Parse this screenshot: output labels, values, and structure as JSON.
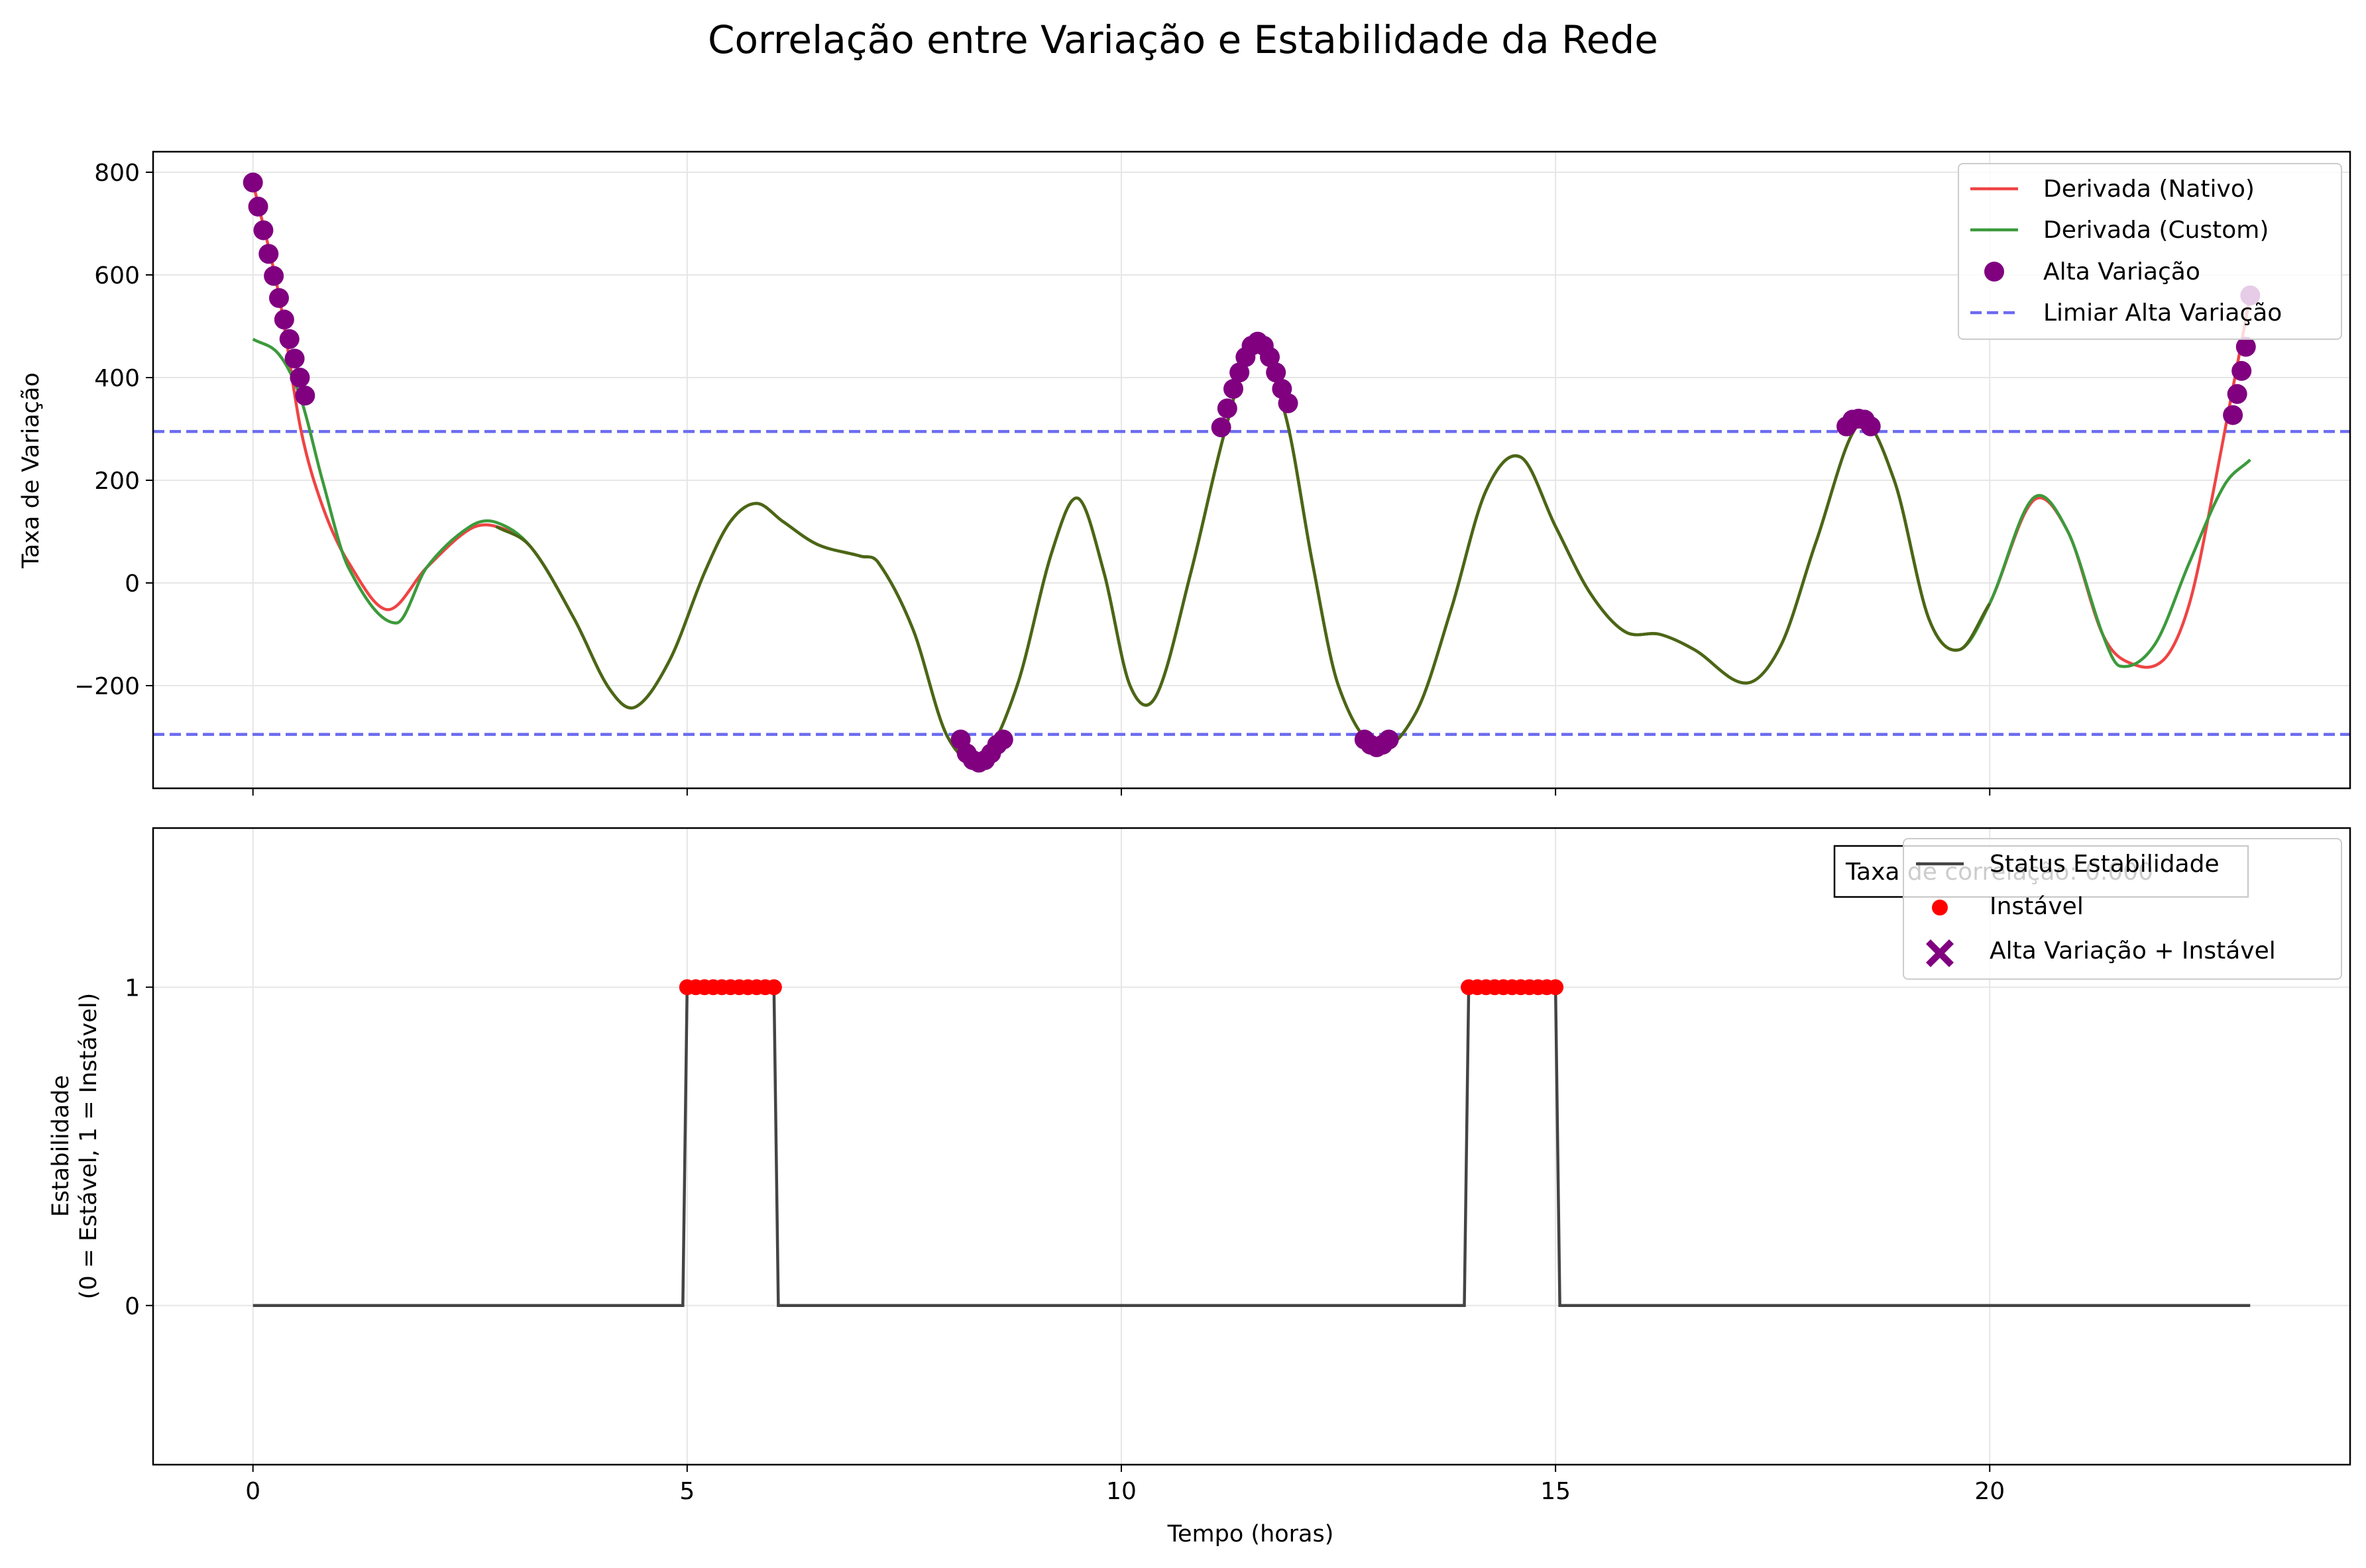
{
  "chart_data": {
    "title": "Correlação entre Variação e Estabilidade da Rede",
    "xlabel": "Tempo (horas)",
    "xlim": [
      -1.15,
      24.15
    ],
    "xticks": [
      0,
      5,
      10,
      15,
      20
    ],
    "subplots": [
      {
        "type": "line",
        "ylabel": "Taxa de Variação",
        "ylim": [
          -400,
          840
        ],
        "yticks": [
          -200,
          0,
          200,
          400,
          600,
          800
        ],
        "ytick_labels": [
          "−200",
          "0",
          "200",
          "400",
          "600",
          "800"
        ],
        "grid": true,
        "legend_position": "top-right",
        "threshold": 295,
        "colors": {
          "nativo": "#ef4444",
          "custom": "#3c9a3c",
          "overlap": "#4b6616",
          "highvar": "#800080",
          "threshold": "#6b6bf0"
        },
        "series": [
          {
            "name": "Derivada (Nativo)",
            "x": [
              0,
              0.3,
              0.55,
              0.8,
              1.1,
              1.55,
              2.0,
              2.5,
              2.8,
              3.2,
              3.7,
              4.1,
              4.4,
              4.8,
              5.2,
              5.5,
              5.8,
              6.1,
              6.5,
              7.0,
              7.2,
              7.6,
              8.0,
              8.4,
              8.8,
              9.2,
              9.5,
              9.8,
              10.1,
              10.4,
              10.8,
              11.2,
              11.55,
              11.9,
              12.2,
              12.5,
              12.95,
              13.4,
              13.8,
              14.2,
              14.6,
              15.0,
              15.4,
              15.8,
              16.2,
              16.6,
              17.2,
              17.6,
              18.0,
              18.5,
              18.9,
              19.3,
              19.65,
              20.0,
              20.5,
              20.9,
              21.3,
              21.6,
              22.0,
              22.3,
              22.6,
              23.0
            ],
            "values": [
              780,
              560,
              300,
              150,
              40,
              -52,
              30,
              105,
              110,
              70,
              -70,
              -205,
              -242,
              -150,
              20,
              120,
              155,
              120,
              75,
              52,
              40,
              -90,
              -300,
              -340,
              -200,
              60,
              165,
              20,
              -200,
              -220,
              20,
              300,
              470,
              320,
              40,
              -200,
              -320,
              -250,
              -50,
              180,
              245,
              110,
              -20,
              -95,
              -100,
              -130,
              -195,
              -120,
              80,
              310,
              200,
              -70,
              -130,
              -40,
              160,
              100,
              -100,
              -155,
              -150,
              -40,
              200,
              560
            ]
          },
          {
            "name": "Derivada (Custom)",
            "x": [
              0,
              0.3,
              0.55,
              0.8,
              1.1,
              1.65,
              2.0,
              2.5,
              2.8,
              3.2,
              3.7,
              4.1,
              4.4,
              4.8,
              5.2,
              5.5,
              5.8,
              6.1,
              6.5,
              7.0,
              7.2,
              7.6,
              8.0,
              8.4,
              8.8,
              9.2,
              9.5,
              9.8,
              10.1,
              10.4,
              10.8,
              11.2,
              11.55,
              11.9,
              12.2,
              12.5,
              12.95,
              13.4,
              13.8,
              14.2,
              14.6,
              15.0,
              15.4,
              15.8,
              16.2,
              16.6,
              17.2,
              17.6,
              18.0,
              18.5,
              18.9,
              19.3,
              19.65,
              20.0,
              20.5,
              20.9,
              21.3,
              21.5,
              21.9,
              22.3,
              22.7,
              23.0
            ],
            "values": [
              475,
              445,
              360,
              200,
              30,
              -78,
              30,
              110,
              118,
              70,
              -70,
              -205,
              -242,
              -150,
              20,
              120,
              155,
              120,
              75,
              52,
              40,
              -90,
              -300,
              -340,
              -200,
              60,
              165,
              20,
              -200,
              -220,
              20,
              300,
              470,
              320,
              40,
              -200,
              -320,
              -250,
              -50,
              180,
              245,
              110,
              -20,
              -95,
              -100,
              -130,
              -195,
              -120,
              80,
              310,
              200,
              -70,
              -130,
              -40,
              165,
              100,
              -100,
              -162,
              -120,
              40,
              190,
              240
            ]
          },
          {
            "name": "Alta Variação",
            "type": "scatter",
            "x": [
              0.0,
              0.06,
              0.12,
              0.18,
              0.24,
              0.3,
              0.36,
              0.42,
              0.48,
              0.54,
              0.6,
              8.15,
              8.22,
              8.29,
              8.36,
              8.43,
              8.5,
              8.57,
              8.64,
              11.15,
              11.22,
              11.29,
              11.36,
              11.43,
              11.5,
              11.57,
              11.64,
              11.71,
              11.78,
              11.85,
              11.92,
              12.8,
              12.87,
              12.94,
              13.01,
              13.08,
              18.35,
              18.42,
              18.49,
              18.56,
              18.63,
              22.8,
              22.85,
              22.9,
              22.95,
              23.0
            ],
            "values": [
              780,
              733,
              687,
              641,
              598,
              555,
              513,
              475,
              437,
              400,
              365,
              -305,
              -332,
              -345,
              -350,
              -345,
              -332,
              -315,
              -305,
              303,
              340,
              378,
              410,
              440,
              462,
              470,
              462,
              440,
              410,
              378,
              350,
              -305,
              -315,
              -320,
              -315,
              -305,
              305,
              318,
              320,
              318,
              305,
              327,
              368,
              413,
              460,
              560
            ]
          },
          {
            "name": "Limiar Alta Variação",
            "type": "hline",
            "values": [
              295,
              -295
            ]
          }
        ]
      },
      {
        "type": "line",
        "ylabel": "Estabilidade\n(0 = Estável, 1 = Instável)",
        "ylabel_lines": [
          "Estabilidade",
          "(0 = Estável, 1 = Instável)"
        ],
        "ylim": [
          -0.5,
          1.5
        ],
        "yticks": [
          0,
          1
        ],
        "ytick_labels": [
          "0",
          "1"
        ],
        "grid": true,
        "legend_position": "top-right",
        "correlation_label": "Taxa de correlação: 0.000",
        "colors": {
          "status": "#444444",
          "instavel": "#ff0000",
          "both": "#800080"
        },
        "series": [
          {
            "name": "Status Estabilidade",
            "x": [
              0,
              4.95,
              5.0,
              6.0,
              6.05,
              13.95,
              14.0,
              15.0,
              15.05,
              23.0
            ],
            "values": [
              0,
              0,
              1,
              1,
              0,
              0,
              1,
              1,
              0,
              0
            ]
          },
          {
            "name": "Instável",
            "type": "scatter",
            "x": [
              5.0,
              5.1,
              5.2,
              5.3,
              5.4,
              5.5,
              5.6,
              5.7,
              5.8,
              5.9,
              6.0,
              14.0,
              14.1,
              14.2,
              14.3,
              14.4,
              14.5,
              14.6,
              14.7,
              14.8,
              14.9,
              15.0
            ],
            "values": [
              1,
              1,
              1,
              1,
              1,
              1,
              1,
              1,
              1,
              1,
              1,
              1,
              1,
              1,
              1,
              1,
              1,
              1,
              1,
              1,
              1,
              1
            ]
          },
          {
            "name": "Alta Variação + Instável",
            "type": "scatter",
            "x": [],
            "values": []
          }
        ]
      }
    ]
  }
}
